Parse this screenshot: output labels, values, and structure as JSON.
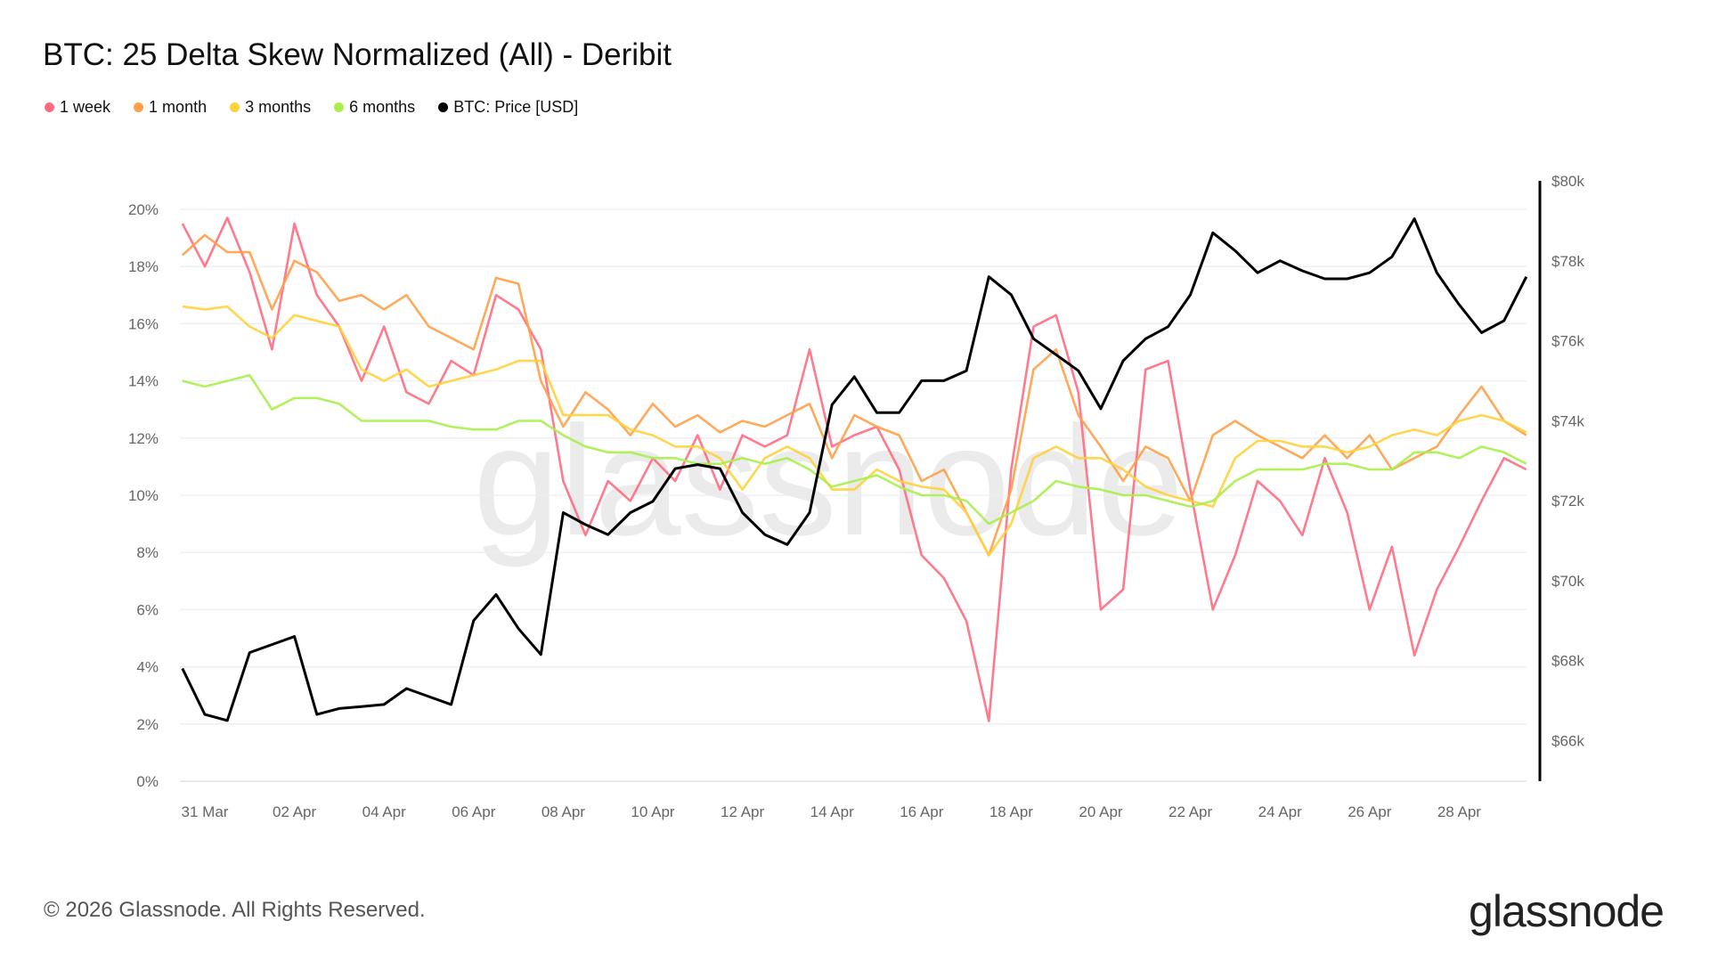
{
  "header": {
    "title": "BTC: 25 Delta Skew Normalized (All) - Deribit"
  },
  "legend": [
    {
      "label": "1 week",
      "color": "#ff6b81"
    },
    {
      "label": "1 month",
      "color": "#ffa04a"
    },
    {
      "label": "3 months",
      "color": "#ffd23a"
    },
    {
      "label": "6 months",
      "color": "#a8ef4c"
    },
    {
      "label": "BTC: Price [USD]",
      "color": "#000000"
    }
  ],
  "footer": {
    "copyright": "© 2026 Glassnode. All Rights Reserved.",
    "logo": "glassnode",
    "watermark": "glassnode"
  },
  "chart_data": {
    "type": "line",
    "title": "BTC: 25 Delta Skew Normalized (All) - Deribit",
    "grid": true,
    "legend_position": "top-left",
    "x_tick_labels": [
      "31 Mar",
      "02 Apr",
      "04 Apr",
      "06 Apr",
      "08 Apr",
      "10 Apr",
      "12 Apr",
      "14 Apr",
      "16 Apr",
      "18 Apr",
      "20 Apr",
      "22 Apr",
      "24 Apr",
      "26 Apr",
      "28 Apr"
    ],
    "x_tick_dates": [
      "2026-03-31",
      "2026-04-02",
      "2026-04-04",
      "2026-04-06",
      "2026-04-08",
      "2026-04-10",
      "2026-04-12",
      "2026-04-14",
      "2026-04-16",
      "2026-04-18",
      "2026-04-20",
      "2026-04-22",
      "2026-04-24",
      "2026-04-26",
      "2026-04-28"
    ],
    "y_left": {
      "ticks": [
        "0%",
        "2%",
        "4%",
        "6%",
        "8%",
        "10%",
        "12%",
        "14%",
        "16%",
        "18%",
        "20%"
      ],
      "range": [
        0,
        20
      ],
      "unit": "%"
    },
    "y_right": {
      "ticks": [
        "$66k",
        "$68k",
        "$70k",
        "$72k",
        "$74k",
        "$76k",
        "$78k",
        "$80k"
      ],
      "range": [
        64,
        80
      ],
      "unit": "$k"
    },
    "x": [
      "2026-03-30T12:00",
      "2026-03-31T00:00",
      "2026-03-31T12:00",
      "2026-04-01T00:00",
      "2026-04-01T12:00",
      "2026-04-02T00:00",
      "2026-04-02T12:00",
      "2026-04-03T00:00",
      "2026-04-03T12:00",
      "2026-04-04T00:00",
      "2026-04-04T12:00",
      "2026-04-05T00:00",
      "2026-04-05T12:00",
      "2026-04-06T00:00",
      "2026-04-06T12:00",
      "2026-04-07T00:00",
      "2026-04-07T12:00",
      "2026-04-08T00:00",
      "2026-04-08T12:00",
      "2026-04-09T00:00",
      "2026-04-09T12:00",
      "2026-04-10T00:00",
      "2026-04-10T12:00",
      "2026-04-11T00:00",
      "2026-04-11T12:00",
      "2026-04-12T00:00",
      "2026-04-12T12:00",
      "2026-04-13T00:00",
      "2026-04-13T12:00",
      "2026-04-14T00:00",
      "2026-04-14T12:00",
      "2026-04-15T00:00",
      "2026-04-15T12:00",
      "2026-04-16T00:00",
      "2026-04-16T12:00",
      "2026-04-17T00:00",
      "2026-04-17T12:00",
      "2026-04-18T00:00",
      "2026-04-18T12:00",
      "2026-04-19T00:00",
      "2026-04-19T12:00",
      "2026-04-20T00:00",
      "2026-04-20T12:00",
      "2026-04-21T00:00",
      "2026-04-21T12:00",
      "2026-04-22T00:00",
      "2026-04-22T12:00",
      "2026-04-23T00:00",
      "2026-04-23T12:00",
      "2026-04-24T00:00",
      "2026-04-24T12:00",
      "2026-04-25T00:00",
      "2026-04-25T12:00",
      "2026-04-26T00:00",
      "2026-04-26T12:00",
      "2026-04-27T00:00",
      "2026-04-27T12:00",
      "2026-04-28T00:00",
      "2026-04-28T12:00",
      "2026-04-29T00:00",
      "2026-04-29T12:00"
    ],
    "series": [
      {
        "name": "1 week",
        "axis": "left",
        "color": "#ff6b81",
        "values": [
          19.5,
          18.0,
          19.7,
          17.8,
          15.1,
          19.5,
          17.0,
          15.9,
          14.0,
          15.9,
          13.6,
          13.2,
          14.7,
          14.2,
          17.0,
          16.5,
          15.1,
          10.5,
          8.6,
          10.5,
          9.8,
          11.3,
          10.5,
          12.1,
          10.2,
          12.1,
          11.7,
          12.1,
          15.1,
          11.7,
          12.1,
          12.4,
          10.9,
          7.9,
          7.1,
          5.6,
          2.1,
          10.9,
          15.9,
          16.3,
          13.6,
          6.0,
          6.7,
          14.4,
          14.7,
          10.2,
          6.0,
          7.9,
          10.5,
          9.8,
          8.6,
          11.3,
          9.4,
          6.0,
          8.2,
          4.4,
          6.7,
          8.2,
          9.8,
          11.3,
          10.9
        ]
      },
      {
        "name": "1 month",
        "axis": "left",
        "color": "#ffa04a",
        "values": [
          18.4,
          19.1,
          18.5,
          18.5,
          16.5,
          18.2,
          17.8,
          16.8,
          17.0,
          16.5,
          17.0,
          15.9,
          15.5,
          15.1,
          17.6,
          17.4,
          14.0,
          12.4,
          13.6,
          13.0,
          12.1,
          13.2,
          12.4,
          12.8,
          12.2,
          12.6,
          12.4,
          12.8,
          13.2,
          11.3,
          12.8,
          12.4,
          12.1,
          10.5,
          10.9,
          9.4,
          7.9,
          10.2,
          14.4,
          15.1,
          12.8,
          11.7,
          10.5,
          11.7,
          11.3,
          9.8,
          12.1,
          12.6,
          12.1,
          11.7,
          11.3,
          12.1,
          11.3,
          12.1,
          10.9,
          11.3,
          11.7,
          12.8,
          13.8,
          12.6,
          12.1
        ]
      },
      {
        "name": "3 months",
        "axis": "left",
        "color": "#ffd23a",
        "values": [
          16.6,
          16.5,
          16.6,
          15.9,
          15.5,
          16.3,
          16.1,
          15.9,
          14.4,
          14.0,
          14.4,
          13.8,
          14.0,
          14.2,
          14.4,
          14.7,
          14.7,
          12.8,
          12.8,
          12.8,
          12.3,
          12.1,
          11.7,
          11.7,
          11.3,
          10.2,
          11.3,
          11.7,
          11.3,
          10.2,
          10.2,
          10.9,
          10.5,
          10.3,
          10.2,
          9.4,
          7.9,
          9.0,
          11.3,
          11.7,
          11.3,
          11.3,
          10.9,
          10.3,
          10.0,
          9.8,
          9.6,
          11.3,
          11.9,
          11.9,
          11.7,
          11.7,
          11.5,
          11.7,
          12.1,
          12.3,
          12.1,
          12.6,
          12.8,
          12.6,
          12.2
        ]
      },
      {
        "name": "6 months",
        "axis": "left",
        "color": "#a8ef4c",
        "values": [
          14.0,
          13.8,
          14.0,
          14.2,
          13.0,
          13.4,
          13.4,
          13.2,
          12.6,
          12.6,
          12.6,
          12.6,
          12.4,
          12.3,
          12.3,
          12.6,
          12.6,
          12.1,
          11.7,
          11.5,
          11.5,
          11.3,
          11.3,
          11.1,
          11.1,
          11.3,
          11.1,
          11.3,
          10.9,
          10.3,
          10.5,
          10.7,
          10.3,
          10.0,
          10.0,
          9.8,
          9.0,
          9.4,
          9.8,
          10.5,
          10.3,
          10.2,
          10.0,
          10.0,
          9.8,
          9.6,
          9.8,
          10.5,
          10.9,
          10.9,
          10.9,
          11.1,
          11.1,
          10.9,
          10.9,
          11.5,
          11.5,
          11.3,
          11.7,
          11.5,
          11.1
        ]
      },
      {
        "name": "BTC: Price [USD]",
        "axis": "right",
        "color": "#000000",
        "values": [
          67.8,
          66.65,
          66.5,
          68.2,
          68.4,
          68.6,
          66.65,
          66.8,
          66.85,
          66.9,
          67.3,
          67.1,
          66.9,
          69.0,
          69.65,
          68.8,
          68.15,
          71.7,
          71.4,
          71.15,
          71.7,
          71.98,
          72.8,
          72.9,
          72.8,
          71.7,
          71.15,
          70.9,
          71.7,
          74.4,
          75.1,
          74.2,
          74.2,
          75.0,
          75.0,
          75.25,
          77.6,
          77.15,
          76.05,
          75.65,
          75.25,
          74.3,
          75.5,
          76.05,
          76.35,
          77.15,
          78.7,
          78.25,
          77.7,
          78.0,
          77.75,
          77.55,
          77.55,
          77.7,
          78.1,
          79.05,
          77.7,
          76.9,
          76.2,
          76.5,
          77.6
        ]
      }
    ]
  }
}
